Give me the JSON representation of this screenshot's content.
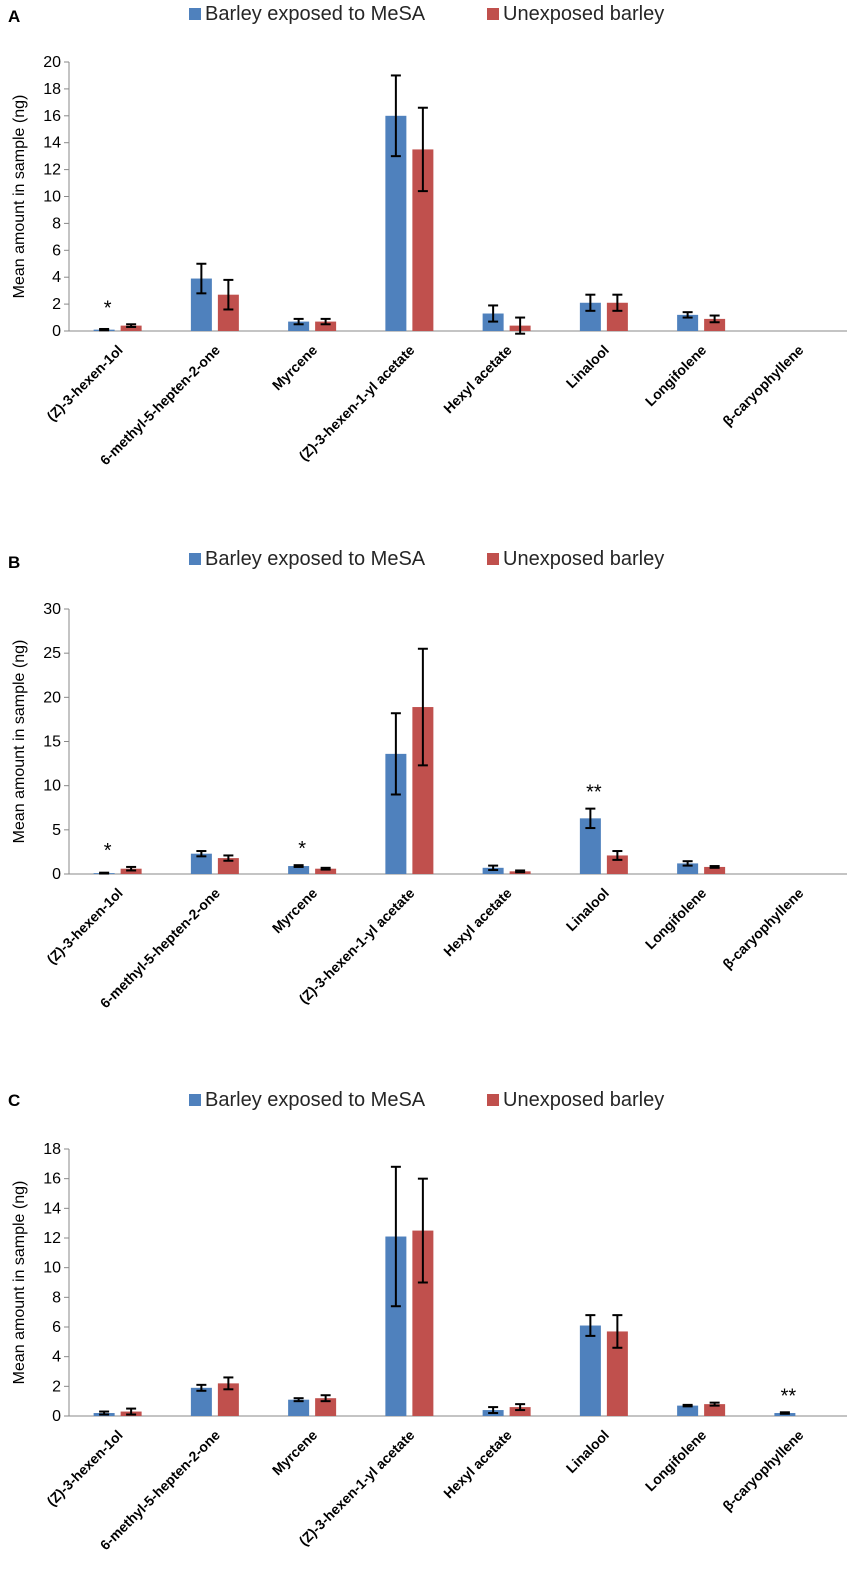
{
  "chart_data": [
    {
      "panel": "A",
      "type": "bar",
      "title": "",
      "ylabel": "Mean amount in sample (ng)",
      "ylim": [
        0,
        20
      ],
      "yticks": [
        0,
        2,
        4,
        6,
        8,
        10,
        12,
        14,
        16,
        18,
        20
      ],
      "grid": false,
      "legend_position": "top",
      "categories": [
        "(Z)-3-hexen-1ol",
        "6-methyl-5-hepten-2-one",
        "Myrcene",
        "(Z)-3-hexen-1-yl acetate",
        "Hexyl acetate",
        "Linalool",
        "Longifolene",
        "β-caryophyllene"
      ],
      "series": [
        {
          "name": "Barley exposed to MeSA",
          "color": "#4f81bd",
          "values": [
            0.1,
            3.9,
            0.7,
            16.0,
            1.3,
            2.1,
            1.2,
            0
          ],
          "errors": [
            0.05,
            1.1,
            0.2,
            3.0,
            0.6,
            0.6,
            0.2,
            0
          ]
        },
        {
          "name": "Unexposed barley",
          "color": "#c0504d",
          "values": [
            0.4,
            2.7,
            0.7,
            13.5,
            0.4,
            2.1,
            0.9,
            0
          ],
          "errors": [
            0.1,
            1.1,
            0.2,
            3.1,
            0.6,
            0.6,
            0.25,
            0
          ]
        }
      ],
      "annotations": [
        {
          "category_index": 0,
          "text": "*"
        }
      ]
    },
    {
      "panel": "B",
      "type": "bar",
      "title": "",
      "ylabel": "Mean amount in sample (ng)",
      "ylim": [
        0,
        30
      ],
      "yticks": [
        0,
        5,
        10,
        15,
        20,
        25,
        30
      ],
      "grid": false,
      "legend_position": "top",
      "categories": [
        "(Z)-3-hexen-1ol",
        "6-methyl-5-hepten-2-one",
        "Myrcene",
        "(Z)-3-hexen-1-yl acetate",
        "Hexyl acetate",
        "Linalool",
        "Longifolene",
        "β-caryophyllene"
      ],
      "series": [
        {
          "name": "Barley exposed to MeSA",
          "color": "#4f81bd",
          "values": [
            0.1,
            2.3,
            0.9,
            13.6,
            0.7,
            6.3,
            1.2,
            0
          ],
          "errors": [
            0.05,
            0.3,
            0.1,
            4.6,
            0.25,
            1.1,
            0.25,
            0
          ]
        },
        {
          "name": "Unexposed barley",
          "color": "#c0504d",
          "values": [
            0.6,
            1.8,
            0.6,
            18.9,
            0.3,
            2.1,
            0.8,
            0
          ],
          "errors": [
            0.2,
            0.3,
            0.1,
            6.6,
            0.1,
            0.5,
            0.1,
            0
          ]
        }
      ],
      "annotations": [
        {
          "category_index": 0,
          "text": "*"
        },
        {
          "category_index": 2,
          "text": "*"
        },
        {
          "category_index": 5,
          "text": "**"
        }
      ]
    },
    {
      "panel": "C",
      "type": "bar",
      "title": "",
      "ylabel": "Mean amount in sample (ng)",
      "ylim": [
        0,
        18
      ],
      "yticks": [
        0,
        2,
        4,
        6,
        8,
        10,
        12,
        14,
        16,
        18
      ],
      "grid": false,
      "legend_position": "top",
      "categories": [
        "(Z)-3-hexen-1ol",
        "6-methyl-5-hepten-2-one",
        "Myrcene",
        "(Z)-3-hexen-1-yl acetate",
        "Hexyl acetate",
        "Linalool",
        "Longifolene",
        "β-caryophyllene"
      ],
      "series": [
        {
          "name": "Barley exposed to MeSA",
          "color": "#4f81bd",
          "values": [
            0.2,
            1.9,
            1.1,
            12.1,
            0.4,
            6.1,
            0.7,
            0.2
          ],
          "errors": [
            0.1,
            0.2,
            0.1,
            4.7,
            0.2,
            0.7,
            0.05,
            0.05
          ]
        },
        {
          "name": "Unexposed barley",
          "color": "#c0504d",
          "values": [
            0.3,
            2.2,
            1.2,
            12.5,
            0.6,
            5.7,
            0.8,
            0
          ],
          "errors": [
            0.2,
            0.4,
            0.2,
            3.5,
            0.2,
            1.1,
            0.1,
            0
          ]
        }
      ],
      "annotations": [
        {
          "category_index": 7,
          "text": "**"
        }
      ]
    }
  ]
}
